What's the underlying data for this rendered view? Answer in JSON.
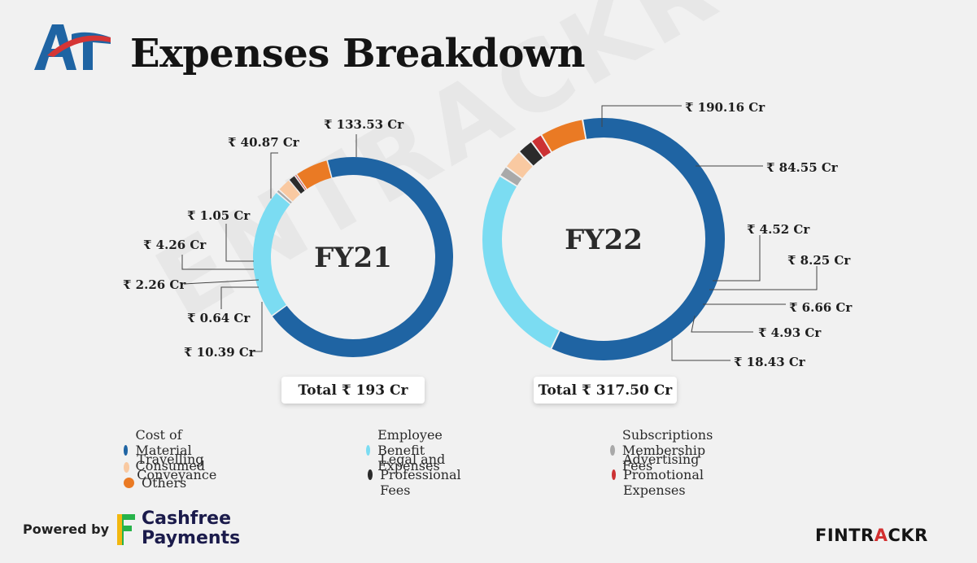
{
  "header": {
    "title": "Expenses Breakdown",
    "logo_text": "AT"
  },
  "watermark": "ENTRACKR",
  "colors": {
    "Cost of Material Consumed": "#1f64a3",
    "Employee Benefit Expenses": "#7bdcf2",
    "Subscriptions Membership Fees": "#a9a9a9",
    "Travelling Conveyance": "#f9c9a1",
    "Legal and Professional Fees": "#2b2b2b",
    "Advertising Promotional Expenses": "#cc3234",
    "Others": "#ea7a24"
  },
  "chart_data": [
    {
      "type": "pie",
      "subtype": "donut",
      "center_label": "FY21",
      "total_label": "Total ₹ 193 Cr",
      "categories": [
        "Cost of Material Consumed",
        "Employee Benefit Expenses",
        "Subscriptions Membership Fees",
        "Travelling Conveyance",
        "Legal and Professional Fees",
        "Advertising Promotional Expenses",
        "Others"
      ],
      "values": [
        133.53,
        40.87,
        1.05,
        4.26,
        2.26,
        0.64,
        10.39
      ],
      "labels": [
        "₹ 133.53 Cr",
        "₹ 40.87 Cr",
        "₹ 1.05 Cr",
        "₹ 4.26 Cr",
        "₹ 2.26 Cr",
        "₹ 0.64 Cr",
        "₹ 10.39 Cr"
      ]
    },
    {
      "type": "pie",
      "subtype": "donut",
      "center_label": "FY22",
      "total_label": "Total ₹ 317.50 Cr",
      "categories": [
        "Cost of Material Consumed",
        "Employee Benefit Expenses",
        "Subscriptions Membership Fees",
        "Travelling Conveyance",
        "Legal and Professional Fees",
        "Advertising Promotional Expenses",
        "Others"
      ],
      "values": [
        190.16,
        84.55,
        4.52,
        8.25,
        6.66,
        4.93,
        18.43
      ],
      "labels": [
        "₹ 190.16 Cr",
        "₹ 84.55 Cr",
        "₹ 4.52 Cr",
        "₹ 8.25 Cr",
        "₹ 6.66 Cr",
        "₹ 4.93 Cr",
        "₹ 18.43 Cr"
      ]
    }
  ],
  "legend": {
    "placement": "bottom",
    "items": [
      "Cost of Material Consumed",
      "Employee Benefit Expenses",
      "Subscriptions Membership Fees",
      "Travelling Conveyance",
      "Legal and Professional Fees",
      "Advertising Promotional Expenses",
      "Others"
    ]
  },
  "footer": {
    "powered_by": "Powered by",
    "cashfree_line1": "Cashfree",
    "cashfree_line2": "Payments",
    "brand_main": "FINTR",
    "brand_accent": "A",
    "brand_end": "CKR"
  }
}
